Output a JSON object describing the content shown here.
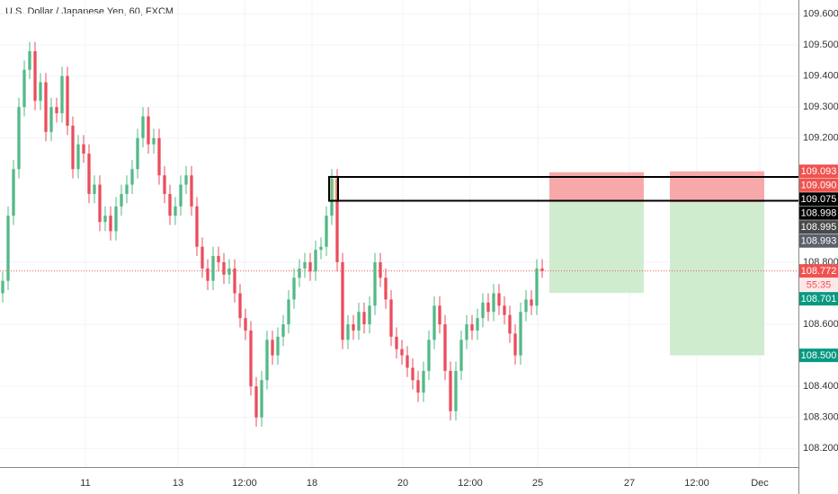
{
  "chart_data": {
    "type": "candlestick",
    "title": "U.S. Dollar / Japanese Yen, 60, FXCM",
    "up_color": "#53b987",
    "down_color": "#eb4d5c",
    "xlim": [
      -0.5,
      147.5
    ],
    "ylim": [
      108.14,
      109.645
    ],
    "xticks": [
      {
        "value": 15.33,
        "label": "11"
      },
      {
        "value": 32.5,
        "label": "13"
      },
      {
        "value": 44.83,
        "label": "12:00"
      },
      {
        "value": 57.33,
        "label": "18"
      },
      {
        "value": 74.17,
        "label": "20"
      },
      {
        "value": 86.67,
        "label": "12:00"
      },
      {
        "value": 99.17,
        "label": "25"
      },
      {
        "value": 116.17,
        "label": "27"
      },
      {
        "value": 128.67,
        "label": "12:00"
      },
      {
        "value": 140.33,
        "label": "Dec"
      }
    ],
    "yticks": [
      {
        "value": 109.6,
        "label": "109.600"
      },
      {
        "value": 109.5,
        "label": "109.500"
      },
      {
        "value": 109.4,
        "label": "109.400"
      },
      {
        "value": 109.3,
        "label": "109.300"
      },
      {
        "value": 109.2,
        "label": "109.200"
      },
      {
        "value": 108.8,
        "label": "108.800"
      },
      {
        "value": 108.6,
        "label": "108.600"
      },
      {
        "value": 108.4,
        "label": "108.400"
      },
      {
        "value": 108.3,
        "label": "108.300"
      },
      {
        "value": 108.2,
        "label": "108.200"
      }
    ],
    "grid": true,
    "x": [
      0,
      1,
      2,
      3,
      4,
      5,
      6,
      7,
      8,
      9,
      10,
      11,
      12,
      13,
      14,
      15,
      16,
      17,
      18,
      19,
      20,
      21,
      22,
      23,
      24,
      25,
      26,
      27,
      28,
      29,
      30,
      31,
      32,
      33,
      34,
      35,
      36,
      37,
      38,
      39,
      40,
      41,
      42,
      43,
      44,
      45,
      46,
      47,
      48,
      49,
      50,
      51,
      52,
      53,
      54,
      55,
      56,
      57,
      58,
      59,
      60,
      61,
      62,
      63,
      64,
      65,
      66,
      67,
      68,
      69,
      70,
      71,
      72,
      73,
      74,
      75,
      76,
      77,
      78,
      79,
      80,
      81,
      82,
      83,
      84,
      85,
      86,
      87,
      88,
      89,
      90,
      91,
      92,
      93,
      94,
      95,
      96,
      97,
      98,
      99,
      100
    ],
    "open": [
      108.7,
      108.74,
      108.95,
      109.1,
      109.3,
      109.42,
      109.48,
      109.32,
      109.38,
      109.22,
      109.3,
      109.28,
      109.4,
      109.24,
      109.1,
      109.18,
      109.15,
      109.02,
      109.05,
      108.93,
      108.95,
      108.9,
      108.98,
      109.02,
      109.05,
      109.1,
      109.2,
      109.27,
      109.18,
      109.2,
      109.08,
      109.02,
      108.95,
      108.98,
      109.05,
      109.08,
      108.98,
      108.85,
      108.78,
      108.74,
      108.82,
      108.8,
      108.76,
      108.78,
      108.7,
      108.62,
      108.58,
      108.4,
      108.3,
      108.42,
      108.55,
      108.5,
      108.56,
      108.6,
      108.68,
      108.75,
      108.78,
      108.8,
      108.77,
      108.84,
      108.85,
      108.95,
      109.07,
      108.8,
      108.55,
      108.6,
      108.58,
      108.64,
      108.6,
      108.66,
      108.8,
      108.75,
      108.68,
      108.56,
      108.52,
      108.5,
      108.46,
      108.42,
      108.38,
      108.45,
      108.55,
      108.66,
      108.6,
      108.45,
      108.32,
      108.45,
      108.55,
      108.6,
      108.58,
      108.62,
      108.67,
      108.64,
      108.7,
      108.66,
      108.63,
      108.57,
      108.5,
      108.64,
      108.68,
      108.66,
      108.78
    ],
    "high": [
      108.77,
      108.98,
      109.13,
      109.33,
      109.45,
      109.51,
      109.51,
      109.41,
      109.41,
      109.33,
      109.33,
      109.43,
      109.43,
      109.27,
      109.21,
      109.21,
      109.18,
      109.08,
      109.08,
      108.98,
      108.98,
      109.01,
      109.05,
      109.08,
      109.13,
      109.23,
      109.3,
      109.3,
      109.23,
      109.23,
      109.11,
      109.05,
      109.01,
      109.08,
      109.11,
      109.11,
      109.01,
      108.88,
      108.81,
      108.85,
      108.85,
      108.83,
      108.81,
      108.81,
      108.73,
      108.65,
      108.61,
      108.43,
      108.45,
      108.58,
      108.58,
      108.59,
      108.63,
      108.71,
      108.78,
      108.81,
      108.83,
      108.83,
      108.87,
      108.88,
      108.98,
      109.1,
      109.1,
      108.83,
      108.63,
      108.63,
      108.67,
      108.67,
      108.69,
      108.83,
      108.83,
      108.78,
      108.71,
      108.59,
      108.55,
      108.53,
      108.49,
      108.45,
      108.48,
      108.58,
      108.69,
      108.69,
      108.63,
      108.48,
      108.48,
      108.58,
      108.63,
      108.63,
      108.65,
      108.7,
      108.7,
      108.73,
      108.73,
      108.69,
      108.66,
      108.6,
      108.67,
      108.71,
      108.71,
      108.81,
      108.81
    ],
    "low": [
      108.67,
      108.71,
      108.92,
      109.07,
      109.27,
      109.39,
      109.29,
      109.29,
      109.19,
      109.19,
      109.25,
      109.25,
      109.21,
      109.07,
      109.07,
      109.12,
      108.99,
      108.99,
      108.9,
      108.9,
      108.87,
      108.87,
      108.95,
      108.99,
      109.02,
      109.07,
      109.17,
      109.15,
      109.15,
      109.05,
      108.99,
      108.92,
      108.92,
      108.95,
      109.02,
      108.95,
      108.82,
      108.75,
      108.71,
      108.71,
      108.77,
      108.73,
      108.73,
      108.67,
      108.59,
      108.55,
      108.37,
      108.27,
      108.27,
      108.39,
      108.47,
      108.47,
      108.53,
      108.57,
      108.65,
      108.72,
      108.75,
      108.74,
      108.74,
      108.81,
      108.82,
      108.92,
      108.77,
      108.52,
      108.52,
      108.55,
      108.55,
      108.57,
      108.57,
      108.63,
      108.72,
      108.65,
      108.53,
      108.49,
      108.47,
      108.43,
      108.39,
      108.35,
      108.35,
      108.42,
      108.52,
      108.57,
      108.42,
      108.29,
      108.29,
      108.42,
      108.52,
      108.55,
      108.55,
      108.59,
      108.61,
      108.61,
      108.63,
      108.6,
      108.54,
      108.47,
      108.47,
      108.61,
      108.63,
      108.63,
      108.75
    ],
    "close": [
      108.74,
      108.95,
      109.1,
      109.3,
      109.42,
      109.48,
      109.32,
      109.38,
      109.22,
      109.3,
      109.28,
      109.4,
      109.24,
      109.1,
      109.18,
      109.15,
      109.02,
      109.05,
      108.93,
      108.95,
      108.9,
      108.98,
      109.02,
      109.05,
      109.1,
      109.2,
      109.27,
      109.18,
      109.2,
      109.08,
      109.02,
      108.95,
      108.98,
      109.05,
      109.08,
      108.98,
      108.85,
      108.78,
      108.74,
      108.82,
      108.8,
      108.76,
      108.78,
      108.7,
      108.62,
      108.58,
      108.4,
      108.3,
      108.42,
      108.55,
      108.5,
      108.56,
      108.6,
      108.68,
      108.75,
      108.78,
      108.8,
      108.77,
      108.84,
      108.85,
      108.95,
      109.07,
      108.8,
      108.55,
      108.6,
      108.58,
      108.64,
      108.6,
      108.66,
      108.8,
      108.75,
      108.68,
      108.56,
      108.52,
      108.5,
      108.46,
      108.42,
      108.38,
      108.45,
      108.55,
      108.66,
      108.6,
      108.45,
      108.32,
      108.45,
      108.55,
      108.6,
      108.58,
      108.62,
      108.67,
      108.64,
      108.7,
      108.66,
      108.63,
      108.57,
      108.5,
      108.64,
      108.68,
      108.66,
      108.78,
      108.772
    ],
    "current_price": 108.772,
    "rectangle": {
      "x": [
        60.5,
        62.17
      ],
      "y": [
        108.998,
        109.075
      ]
    },
    "positions": [
      {
        "x": [
          101.33,
          118.83
        ],
        "stop": 109.09,
        "entry": 108.995,
        "target": 108.701
      },
      {
        "x": [
          123.67,
          141.17
        ],
        "stop": 109.093,
        "entry": 108.993,
        "target": {
          "value": 108.5,
          "label": "108.500"
        }
      }
    ],
    "price_tags": [
      {
        "price": 109.093,
        "color": "#ef5350"
      },
      {
        "price": {
          "value": 109.09,
          "label": "109.090"
        },
        "color": "#ef5350"
      },
      {
        "price": 109.075,
        "color": "#000000"
      },
      {
        "price": 108.998,
        "color": "#000000"
      },
      {
        "price": 108.995,
        "color": "#4a4a4a"
      },
      {
        "price": 108.993,
        "color": "#5d606b"
      },
      {
        "price": 108.772,
        "color": "#ef5350"
      },
      {
        "text": "55:35",
        "color": "#fde8e8"
      },
      {
        "price": 108.701,
        "color": "#089981"
      },
      {
        "price": {
          "value": 108.5,
          "label": "108.500"
        },
        "color": "#089981"
      }
    ]
  }
}
